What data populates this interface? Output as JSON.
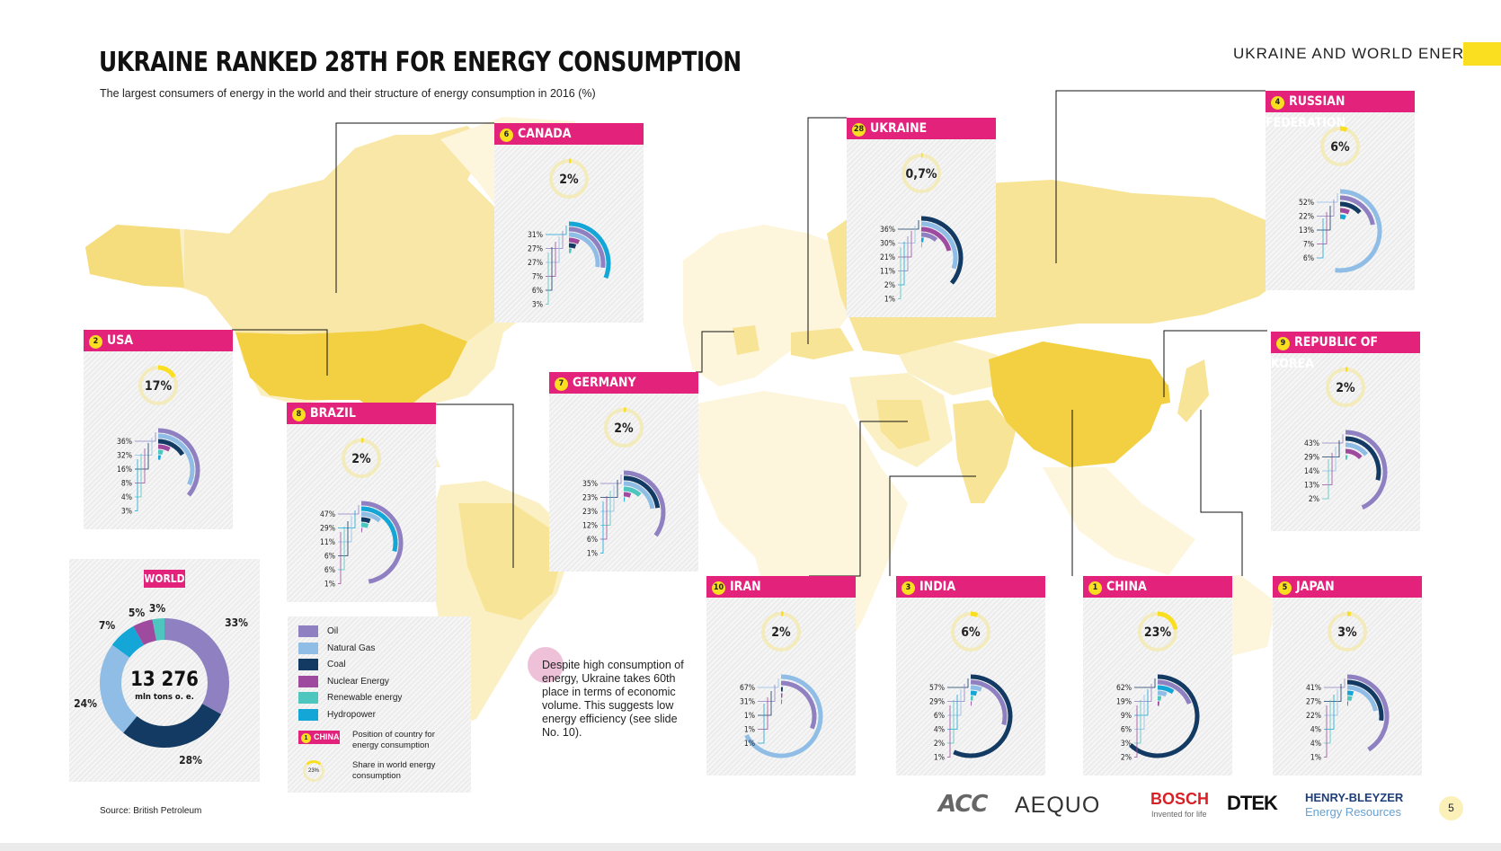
{
  "header": {
    "title": "UKRAINE RANKED 28TH FOR ENERGY CONSUMPTION",
    "subtitle": "The largest consumers of energy in the world and their structure of energy consumption in 2016 (%)",
    "section": "UKRAINE AND WORLD ENERGY",
    "page_number": "5"
  },
  "source": "Source: British Petroleum",
  "note": "Despite high consumption of energy, Ukraine takes 60th place in terms of economic volume. This suggests low energy efficiency (see slide No. 10).",
  "colors": {
    "oil": "#8f80c2",
    "natural_gas": "#8fbde5",
    "coal": "#123a63",
    "nuclear": "#9e4a9e",
    "renewable": "#4cc6be",
    "hydro": "#13a6d6",
    "accent": "#e3227c",
    "yellow": "#f9df1f"
  },
  "legend": {
    "items": [
      {
        "label": "Oil",
        "key": "oil"
      },
      {
        "label": "Natural Gas",
        "key": "natural_gas"
      },
      {
        "label": "Coal",
        "key": "coal"
      },
      {
        "label": "Nuclear Energy",
        "key": "nuclear"
      },
      {
        "label": "Renewable energy",
        "key": "renewable"
      },
      {
        "label": "Hydropower",
        "key": "hydro"
      }
    ],
    "position_sample_rank": "1",
    "position_sample_name": "CHINA",
    "position_label": "Position of country for energy consumption",
    "share_sample": "23%",
    "share_label": "Share in world energy consumption"
  },
  "logos": {
    "acc": "ACC",
    "aequo": "AEQUO",
    "bosch": "BOSCH",
    "bosch_sub": "Invented for life",
    "dtek": "DTEK",
    "hb": "HENRY-BLEYZER",
    "hb_sub": "Energy Resources"
  },
  "chart_data": {
    "type": "pie",
    "world": {
      "label": "WORLD",
      "total": "13 276",
      "unit": "mln tons o. e.",
      "slices": [
        {
          "key": "oil",
          "value": 33,
          "label": "33%"
        },
        {
          "key": "coal",
          "value": 28,
          "label": "28%"
        },
        {
          "key": "natural_gas",
          "value": 24,
          "label": "24%"
        },
        {
          "key": "hydro",
          "value": 7,
          "label": "7%"
        },
        {
          "key": "nuclear",
          "value": 5,
          "label": "5%"
        },
        {
          "key": "renewable",
          "value": 3,
          "label": "3%"
        }
      ]
    },
    "countries": [
      {
        "name": "CANADA",
        "rank": "6",
        "share": 2,
        "share_label": "2%",
        "values": [
          31,
          27,
          27,
          7,
          6,
          3
        ],
        "keys": [
          "hydro",
          "oil",
          "natural_gas",
          "nuclear",
          "coal",
          "renewable"
        ],
        "labels": [
          "31%",
          "27%",
          "27%",
          "7%",
          "6%",
          "3%"
        ]
      },
      {
        "name": "UKRAINE",
        "rank": "28",
        "share": 0.7,
        "share_label": "0,7%",
        "values": [
          36,
          30,
          21,
          11,
          2,
          1
        ],
        "keys": [
          "coal",
          "natural_gas",
          "nuclear",
          "oil",
          "hydro",
          "renewable"
        ],
        "labels": [
          "36%",
          "30%",
          "21%",
          "11%",
          "2%",
          "1%"
        ]
      },
      {
        "name": "RUSSIAN FEDERATION",
        "rank": "4",
        "share": 6,
        "share_label": "6%",
        "values": [
          52,
          22,
          13,
          7,
          6
        ],
        "keys": [
          "natural_gas",
          "oil",
          "coal",
          "nuclear",
          "hydro"
        ],
        "labels": [
          "52%",
          "22%",
          "13%",
          "7%",
          "6%"
        ]
      },
      {
        "name": "USA",
        "rank": "2",
        "share": 17,
        "share_label": "17%",
        "values": [
          36,
          32,
          16,
          8,
          4,
          3
        ],
        "keys": [
          "oil",
          "natural_gas",
          "coal",
          "nuclear",
          "renewable",
          "hydro"
        ],
        "labels": [
          "36%",
          "32%",
          "16%",
          "8%",
          "4%",
          "3%"
        ]
      },
      {
        "name": "BRAZIL",
        "rank": "8",
        "share": 2,
        "share_label": "2%",
        "values": [
          47,
          29,
          11,
          6,
          6,
          1
        ],
        "keys": [
          "oil",
          "hydro",
          "natural_gas",
          "coal",
          "renewable",
          "nuclear"
        ],
        "labels": [
          "47%",
          "29%",
          "11%",
          "6%",
          "6%",
          "1%"
        ]
      },
      {
        "name": "GERMANY",
        "rank": "7",
        "share": 2,
        "share_label": "2%",
        "values": [
          35,
          23,
          23,
          12,
          6,
          1
        ],
        "keys": [
          "oil",
          "coal",
          "natural_gas",
          "renewable",
          "nuclear",
          "hydro"
        ],
        "labels": [
          "35%",
          "23%",
          "23%",
          "12%",
          "6%",
          "1%"
        ]
      },
      {
        "name": "REPUBLIC OF KOREA",
        "rank": "9",
        "share": 2,
        "share_label": "2%",
        "values": [
          43,
          29,
          14,
          13,
          2
        ],
        "keys": [
          "oil",
          "coal",
          "natural_gas",
          "nuclear",
          "renewable"
        ],
        "labels": [
          "43%",
          "29%",
          "14%",
          "13%",
          "2%"
        ]
      },
      {
        "name": "IRAN",
        "rank": "10",
        "share": 2,
        "share_label": "2%",
        "values": [
          67,
          31,
          1,
          1,
          1
        ],
        "keys": [
          "natural_gas",
          "oil",
          "coal",
          "nuclear",
          "hydro"
        ],
        "labels": [
          "67%",
          "31%",
          "1%",
          "1%",
          "1%"
        ]
      },
      {
        "name": "INDIA",
        "rank": "3",
        "share": 6,
        "share_label": "6%",
        "values": [
          57,
          29,
          6,
          4,
          2,
          1
        ],
        "keys": [
          "coal",
          "oil",
          "natural_gas",
          "hydro",
          "renewable",
          "nuclear"
        ],
        "labels": [
          "57%",
          "29%",
          "6%",
          "4%",
          "2%",
          "1%"
        ]
      },
      {
        "name": "CHINA",
        "rank": "1",
        "share": 23,
        "share_label": "23%",
        "values": [
          62,
          19,
          9,
          6,
          3,
          2
        ],
        "keys": [
          "coal",
          "oil",
          "hydro",
          "natural_gas",
          "renewable",
          "nuclear"
        ],
        "labels": [
          "62%",
          "19%",
          "9%",
          "6%",
          "3%",
          "2%"
        ]
      },
      {
        "name": "JAPAN",
        "rank": "5",
        "share": 3,
        "share_label": "3%",
        "values": [
          41,
          27,
          22,
          4,
          4,
          1
        ],
        "keys": [
          "oil",
          "coal",
          "natural_gas",
          "hydro",
          "renewable",
          "nuclear"
        ],
        "labels": [
          "41%",
          "27%",
          "22%",
          "4%",
          "4%",
          "1%"
        ]
      }
    ]
  }
}
